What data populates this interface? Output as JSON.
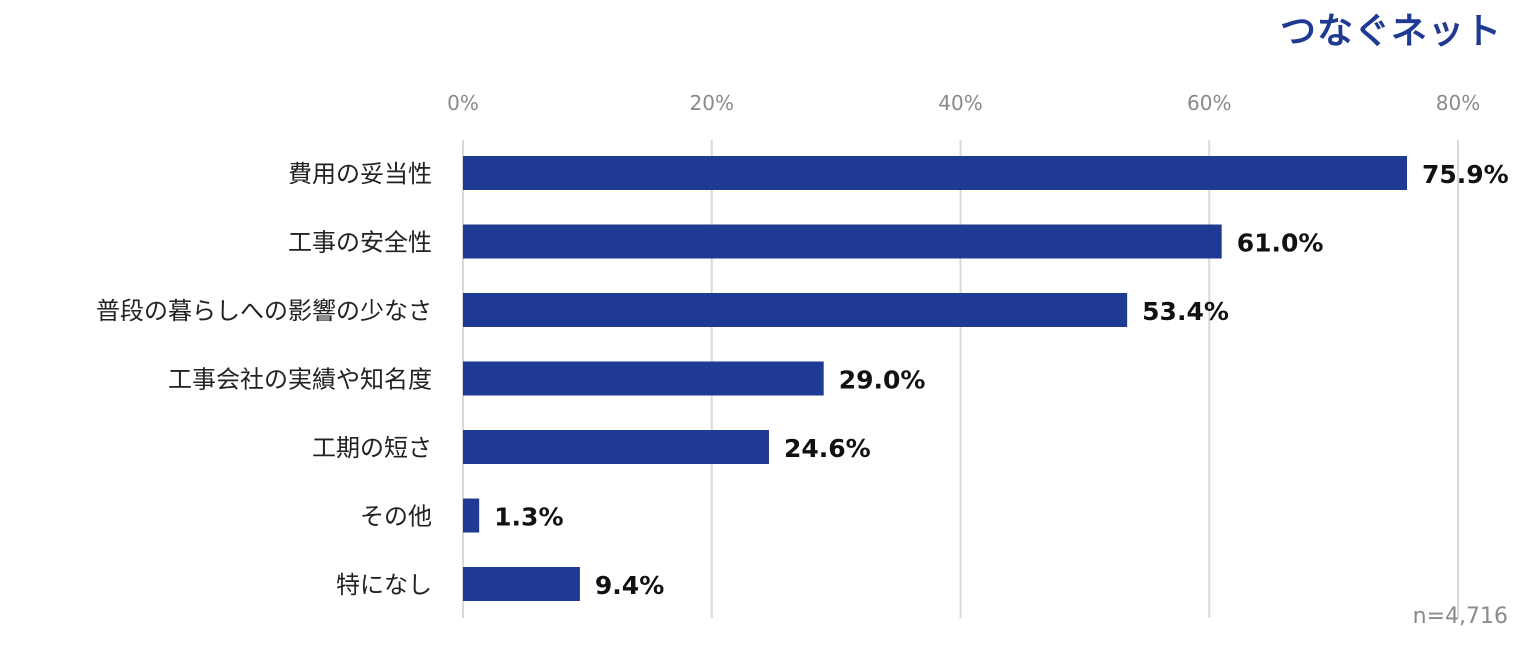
{
  "brand": {
    "logo_text": "つなぐネット",
    "color": "#1f3a93"
  },
  "chart_data": {
    "type": "bar",
    "orientation": "horizontal",
    "title": "",
    "xlabel": "",
    "ylabel": "",
    "categories": [
      "費用の妥当性",
      "工事の安全性",
      "普段の暮らしへの影響の少なさ",
      "工事会社の実績や知名度",
      "工期の短さ",
      "その他",
      "特になし"
    ],
    "values": [
      75.9,
      61.0,
      53.4,
      29.0,
      24.6,
      1.3,
      9.4
    ],
    "value_labels": [
      "75.9%",
      "61.0%",
      "53.4%",
      "29.0%",
      "24.6%",
      "1.3%",
      "9.4%"
    ],
    "x_ticks": [
      0,
      20,
      40,
      60,
      80
    ],
    "x_tick_labels": [
      "0%",
      "20%",
      "40%",
      "60%",
      "80%"
    ],
    "xlim": [
      0,
      80
    ],
    "x_axis_position": "top",
    "grid": true,
    "bar_color": "#1f3a93",
    "sample_size": "n=4,716"
  }
}
